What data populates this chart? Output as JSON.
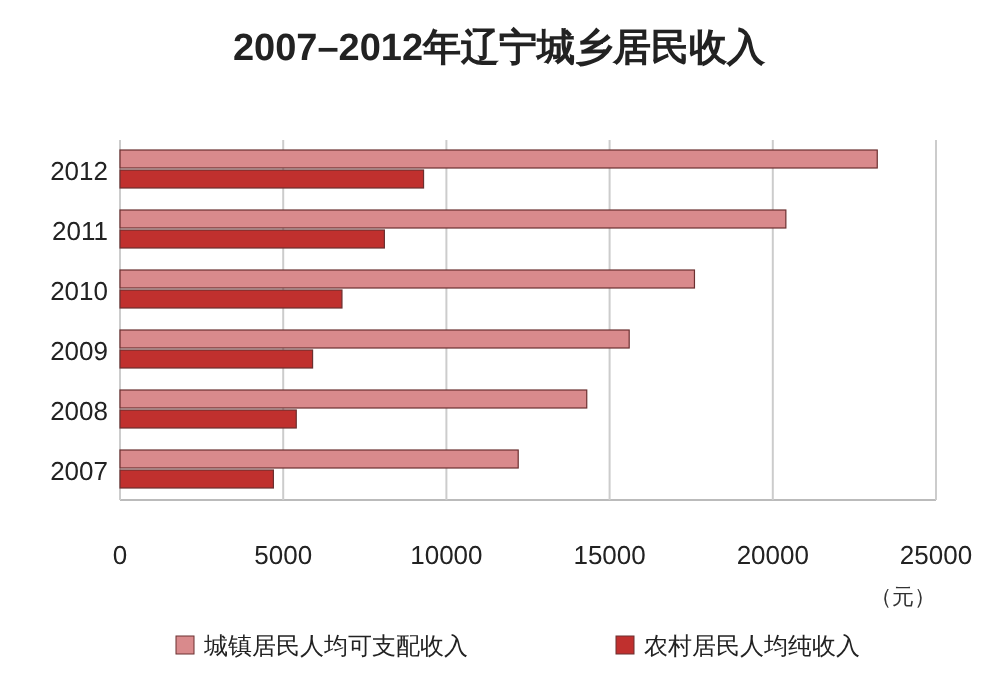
{
  "chart_data": {
    "type": "bar",
    "orientation": "horizontal",
    "title": "2007–2012年辽宁城乡居民收入",
    "categories": [
      "2012",
      "2011",
      "2010",
      "2009",
      "2008",
      "2007"
    ],
    "series": [
      {
        "name": "城镇居民人均可支配收入",
        "color": "#d98a8c",
        "values": [
          23200,
          20400,
          17600,
          15600,
          14300,
          12200
        ]
      },
      {
        "name": "农村居民人均纯收入",
        "color": "#c0302e",
        "values": [
          9300,
          8100,
          6800,
          5900,
          5400,
          4700
        ]
      }
    ],
    "xlim": [
      0,
      25000
    ],
    "xticks": [
      0,
      5000,
      10000,
      15000,
      20000,
      25000
    ],
    "xlabel": "（元）",
    "grid": "x",
    "legend": "bottom"
  }
}
